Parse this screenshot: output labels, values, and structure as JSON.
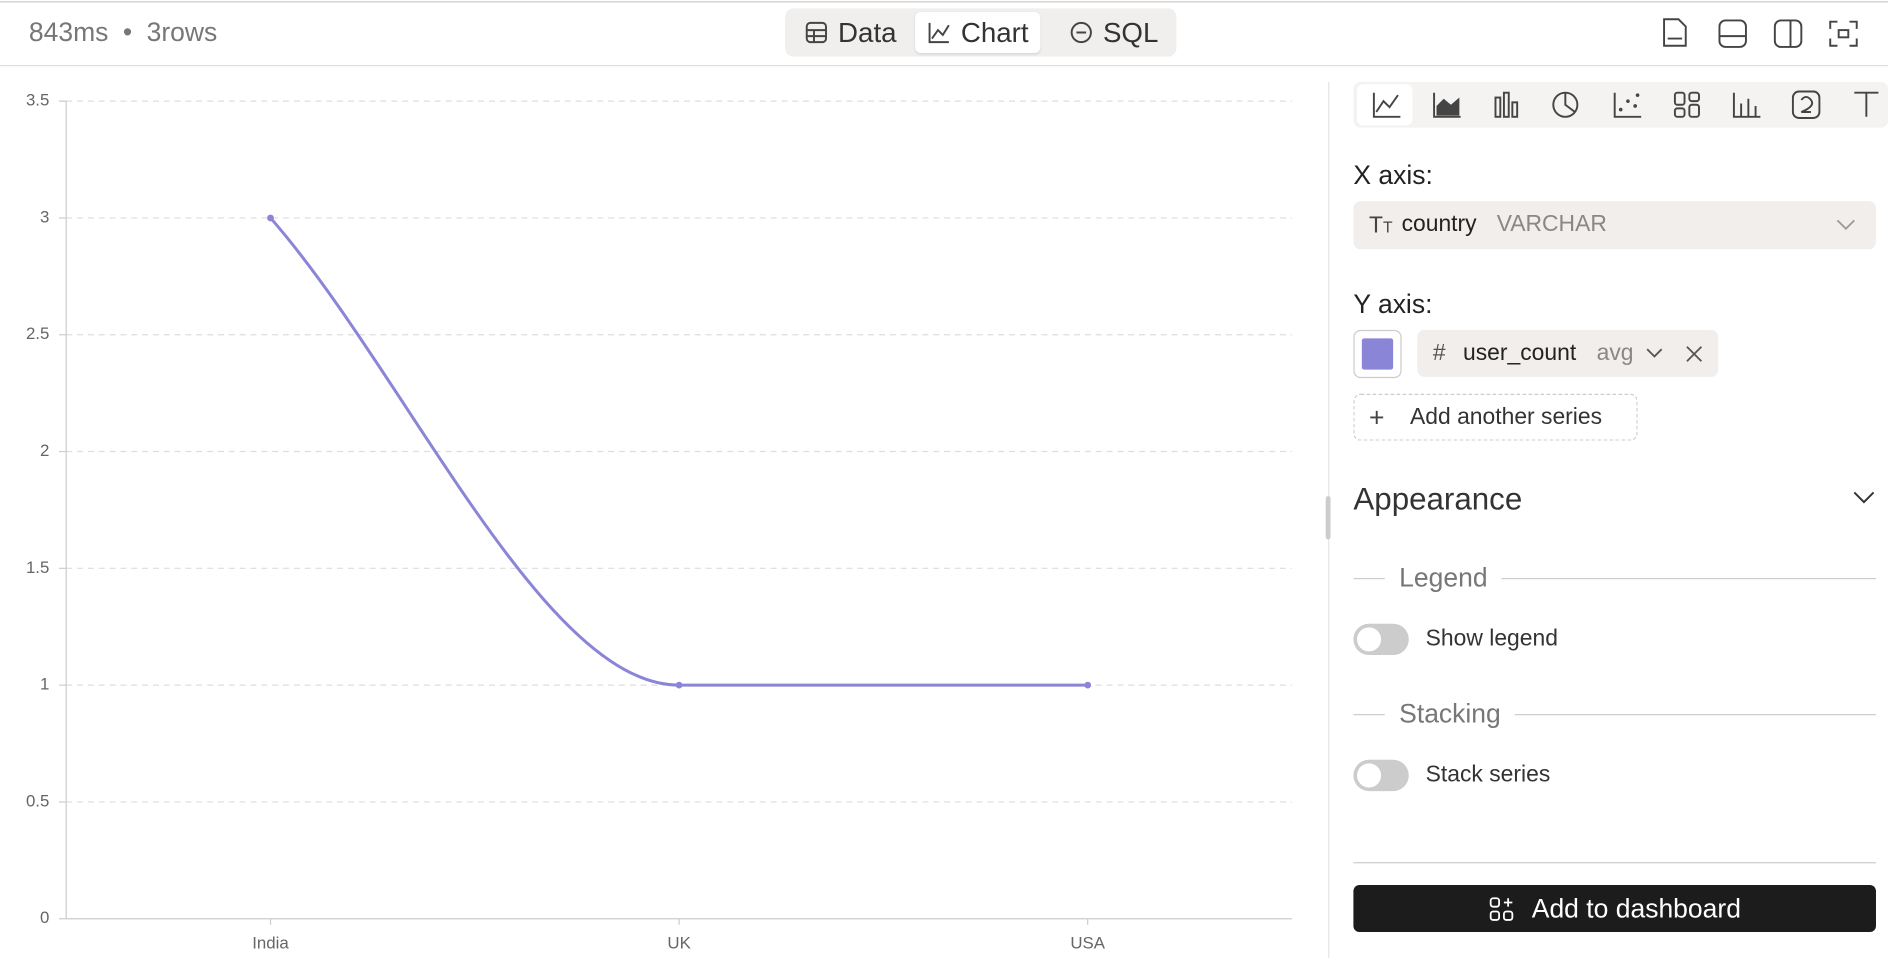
{
  "status": {
    "elapsed": "843ms",
    "separator": "•",
    "rows": "3rows"
  },
  "tabs": [
    "Data",
    "Chart",
    "SQL"
  ],
  "chart_data": {
    "type": "line",
    "categories": [
      "India",
      "UK",
      "USA"
    ],
    "values": [
      3,
      1,
      1
    ],
    "color": "#8b85d8",
    "ylim": [
      0,
      3.5
    ],
    "yticks": [
      0,
      0.5,
      1,
      1.5,
      2,
      2.5,
      3,
      3.5
    ],
    "grid": true
  },
  "panel": {
    "x_axis_label": "X axis:",
    "x_field": "country",
    "x_type": "VARCHAR",
    "y_axis_label": "Y axis:",
    "y_field": "user_count",
    "y_agg": "avg",
    "add_series": "Add another series",
    "appearance": "Appearance",
    "legend_heading": "Legend",
    "show_legend": "Show legend",
    "stacking_heading": "Stacking",
    "stack_series": "Stack series",
    "add_dashboard": "Add to dashboard"
  }
}
